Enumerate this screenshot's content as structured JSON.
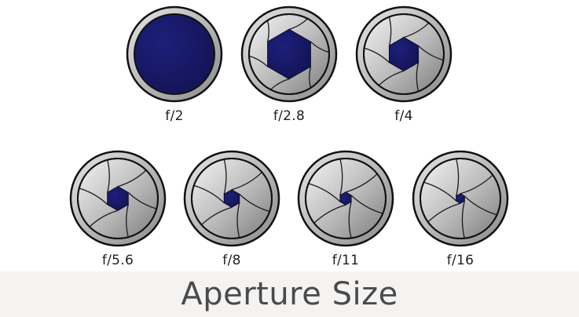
{
  "title": "Aperture Size",
  "colors": {
    "opening": "#121353",
    "opening_light": "#1d1f7a",
    "blade_light": "#f4f4f4",
    "blade_dark": "#7d7d7d",
    "ring": "#8a8a8a",
    "outline": "#111111"
  },
  "rows": [
    [
      {
        "label": "f/2",
        "fully_open": true
      },
      {
        "label": "f/2.8",
        "opening_fraction": 0.62
      },
      {
        "label": "f/4",
        "opening_fraction": 0.42
      }
    ],
    [
      {
        "label": "f/5.6",
        "opening_fraction": 0.3
      },
      {
        "label": "f/8",
        "opening_fraction": 0.22
      },
      {
        "label": "f/11",
        "opening_fraction": 0.16
      },
      {
        "label": "f/16",
        "opening_fraction": 0.12
      }
    ]
  ]
}
